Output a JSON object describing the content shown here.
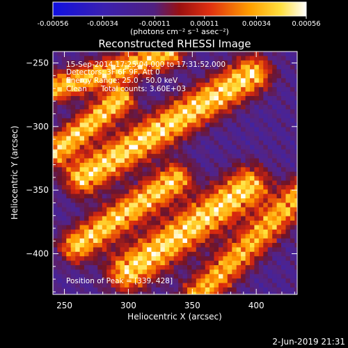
{
  "chart_data": {
    "type": "heatmap",
    "title": "Reconstructed RHESSI Image",
    "xlabel": "Heliocentric X (arcsec)",
    "ylabel": "Heliocentric Y (arcsec)",
    "xlim": [
      241,
      432
    ],
    "ylim": [
      -432,
      -241
    ],
    "x_ticks": [
      250,
      300,
      350,
      400
    ],
    "y_ticks": [
      -250,
      -300,
      -350,
      -400
    ],
    "colorbar": {
      "label": "(photons cm⁻² s⁻¹ asec⁻²)",
      "range": [
        -0.00056,
        0.00056
      ],
      "ticks": [
        "-0.00056",
        "-0.00034",
        "-0.00011",
        "0.00011",
        "0.00034",
        "0.00056"
      ],
      "colors": [
        "#1010e0",
        "#3020c0",
        "#602090",
        "#a02020",
        "#e05010",
        "#ffa000",
        "#ffe040",
        "#ffffff"
      ]
    },
    "annotations": {
      "time_range": "15-Sep-2014 17:25:04.000 to 17:31:52.000",
      "detectors": "Detectors: 3F 6F 9F, Att 0",
      "energy_range": "Energy Range: 25.0 - 50.0 keV",
      "algorithm": "Clean",
      "total_counts": "Total counts: 3.60E+03",
      "peak": "Position of Peak = [339, 428]"
    },
    "bands": [
      {
        "x0": 241,
        "y0": -268,
        "x1": 330,
        "y1": -241,
        "amplitude": 0.9,
        "width": 8
      },
      {
        "x0": 241,
        "y0": -318,
        "x1": 292,
        "y1": -277,
        "amplitude": 0.95,
        "width": 8
      },
      {
        "x0": 263,
        "y0": -338,
        "x1": 395,
        "y1": -257,
        "amplitude": 1.0,
        "width": 10
      },
      {
        "x0": 258,
        "y0": -392,
        "x1": 335,
        "y1": -340,
        "amplitude": 0.95,
        "width": 9
      },
      {
        "x0": 298,
        "y0": -412,
        "x1": 392,
        "y1": -346,
        "amplitude": 1.0,
        "width": 11
      },
      {
        "x0": 352,
        "y0": -432,
        "x1": 432,
        "y1": -352,
        "amplitude": 0.85,
        "width": 9
      }
    ]
  },
  "footer": {
    "date": "2-Jun-2019 21:31"
  }
}
